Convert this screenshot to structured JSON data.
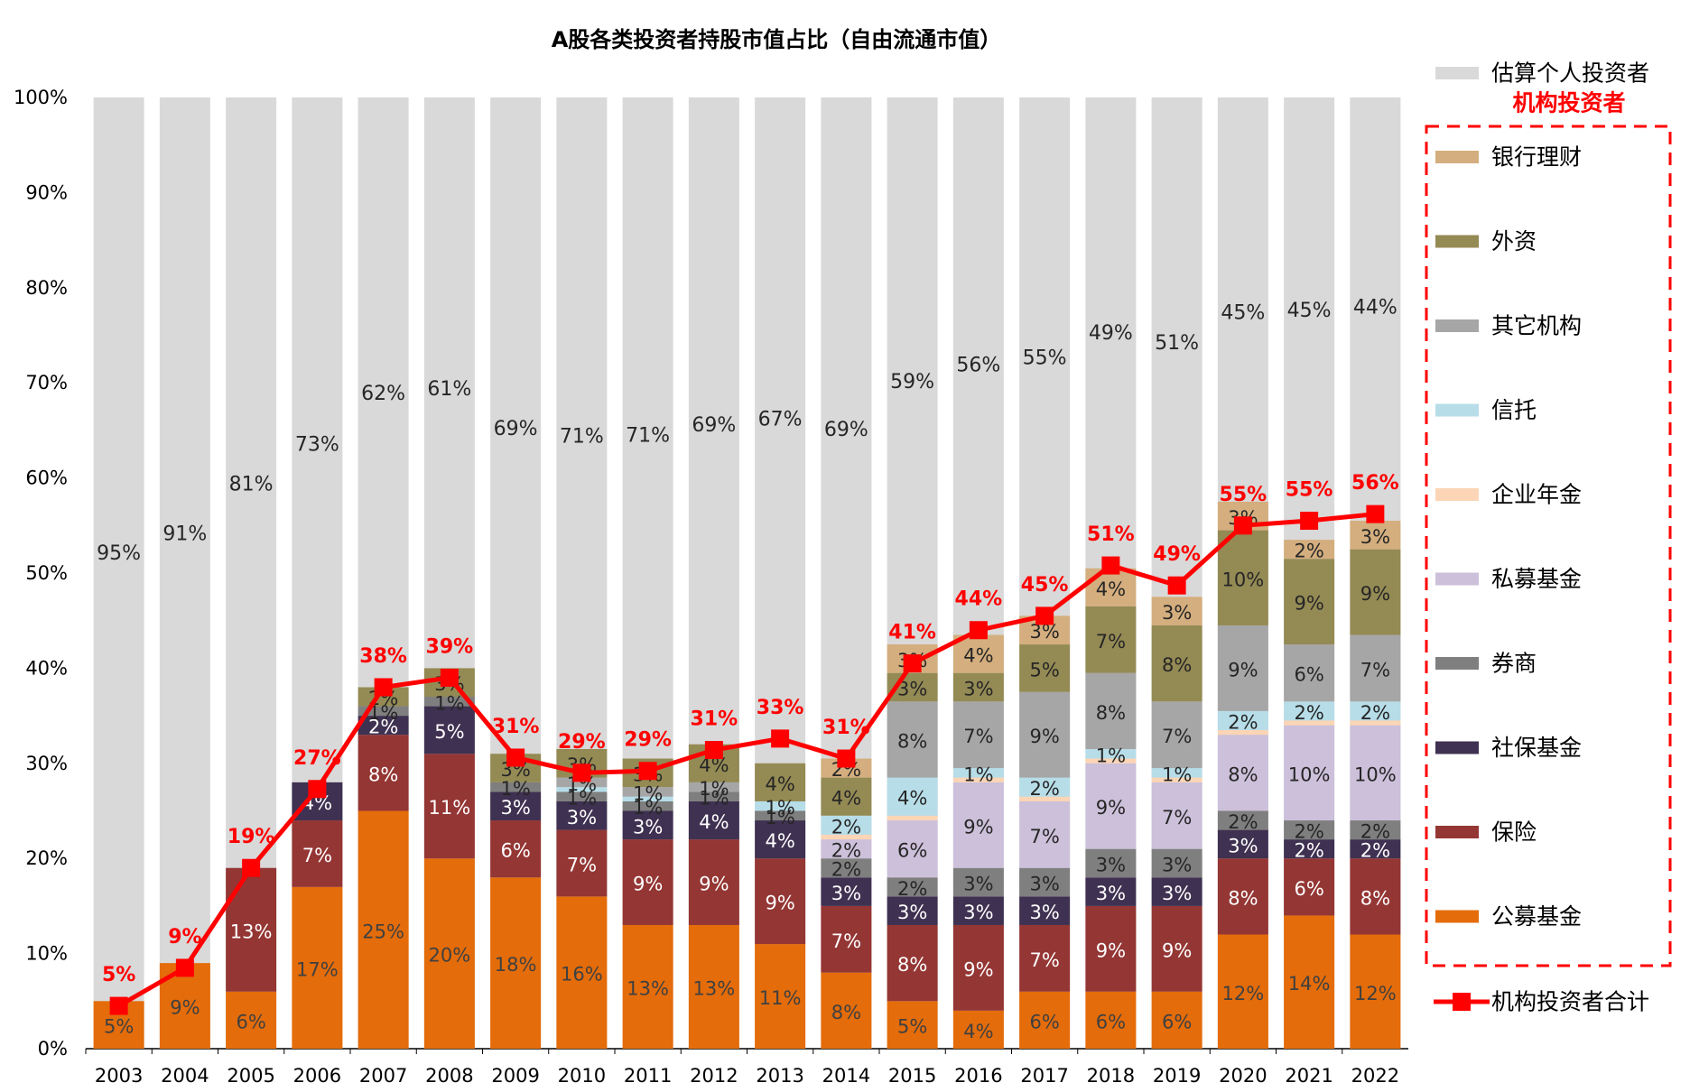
{
  "chart_data": {
    "type": "bar",
    "stacked": true,
    "title": "A股各类投资者持股市值占比（自由流通市值）",
    "ylim": [
      0,
      100
    ],
    "y_ticks": [
      "0%",
      "10%",
      "20%",
      "30%",
      "40%",
      "50%",
      "60%",
      "70%",
      "80%",
      "90%",
      "100%"
    ],
    "categories": [
      "2003",
      "2004",
      "2005",
      "2006",
      "2007",
      "2008",
      "2009",
      "2010",
      "2011",
      "2012",
      "2013",
      "2014",
      "2015",
      "2016",
      "2017",
      "2018",
      "2019",
      "2020",
      "2021",
      "2022"
    ],
    "series": [
      {
        "name": "公募基金",
        "color": "#E46C0A",
        "text_color": "#404040",
        "values": [
          5,
          9,
          6,
          17,
          25,
          20,
          18,
          16,
          13,
          13,
          11,
          8,
          5,
          4,
          6,
          6,
          6,
          12,
          14,
          12
        ],
        "labels": [
          "5%",
          "9%",
          "6%",
          "17%",
          "25%",
          "20%",
          "18%",
          "16%",
          "13%",
          "13%",
          "11%",
          "8%",
          "5%",
          "4%",
          "6%",
          "6%",
          "6%",
          "12%",
          "14%",
          "12%"
        ]
      },
      {
        "name": "保险",
        "color": "#943634",
        "text_color": "#FFFFFF",
        "values": [
          0,
          0,
          13,
          7,
          8,
          11,
          6,
          7,
          9,
          9,
          9,
          7,
          8,
          9,
          7,
          9,
          9,
          8,
          6,
          8
        ],
        "labels": [
          "",
          "",
          "13%",
          "7%",
          "8%",
          "11%",
          "6%",
          "7%",
          "9%",
          "9%",
          "9%",
          "7%",
          "8%",
          "9%",
          "7%",
          "9%",
          "9%",
          "8%",
          "6%",
          "8%"
        ]
      },
      {
        "name": "社保基金",
        "color": "#3F3151",
        "text_color": "#FFFFFF",
        "values": [
          0,
          0,
          0,
          4,
          2,
          5,
          3,
          3,
          3,
          4,
          4,
          3,
          3,
          3,
          3,
          3,
          3,
          3,
          2,
          2
        ],
        "labels": [
          "",
          "",
          "",
          "4%",
          "2%",
          "5%",
          "3%",
          "3%",
          "3%",
          "4%",
          "4%",
          "3%",
          "3%",
          "3%",
          "3%",
          "3%",
          "3%",
          "3%",
          "2%",
          "2%"
        ]
      },
      {
        "name": "券商",
        "color": "#7F7F7F",
        "text_color": "#262626",
        "values": [
          0,
          0,
          0,
          0,
          1,
          1,
          1,
          1,
          1,
          1,
          1,
          2,
          2,
          3,
          3,
          3,
          3,
          2,
          2,
          2
        ],
        "labels": [
          "",
          "",
          "",
          "",
          "1%",
          "1%",
          "1%",
          "1%",
          "1%",
          "1%",
          "1%",
          "2%",
          "2%",
          "3%",
          "3%",
          "3%",
          "3%",
          "2%",
          "2%",
          "2%"
        ]
      },
      {
        "name": "私募基金",
        "color": "#CCC0DA",
        "text_color": "#262626",
        "values": [
          0,
          0,
          0,
          0,
          0,
          0,
          0,
          0,
          0,
          0,
          0,
          2,
          6,
          9,
          7,
          9,
          7,
          8,
          10,
          10
        ],
        "labels": [
          "",
          "",
          "",
          "",
          "",
          "",
          "",
          "",
          "",
          "",
          "",
          "2%",
          "6%",
          "9%",
          "7%",
          "9%",
          "7%",
          "8%",
          "10%",
          "10%"
        ]
      },
      {
        "name": "企业年金",
        "color": "#FBD5B5",
        "text_color": "#262626",
        "values": [
          0,
          0,
          0,
          0,
          0,
          0,
          0,
          0,
          0,
          0,
          0,
          0.5,
          0.5,
          0.5,
          0.5,
          0.5,
          0.5,
          0.5,
          0.5,
          0.5
        ],
        "labels": [
          "",
          "",
          "",
          "",
          "",
          "",
          "",
          "",
          "",
          "",
          "",
          "",
          "",
          "",
          "",
          "",
          "",
          "",
          "",
          ""
        ]
      },
      {
        "name": "信托",
        "color": "#B7DDE8",
        "text_color": "#262626",
        "values": [
          0,
          0,
          0,
          0,
          0,
          0,
          0,
          0.5,
          0.5,
          0,
          1,
          2,
          4,
          1,
          2,
          1,
          1,
          2,
          2,
          2
        ],
        "labels": [
          "",
          "",
          "",
          "",
          "",
          "",
          "",
          "",
          "",
          "",
          "1%",
          "2%",
          "4%",
          "1%",
          "2%",
          "1%",
          "1%",
          "2%",
          "2%",
          "2%"
        ]
      },
      {
        "name": "其它机构",
        "color": "#A6A6A6",
        "text_color": "#262626",
        "values": [
          0,
          0,
          0,
          0,
          0,
          0,
          0,
          1,
          1,
          1,
          0,
          0,
          8,
          7,
          9,
          8,
          7,
          9,
          6,
          7
        ],
        "labels": [
          "",
          "",
          "",
          "",
          "",
          "",
          "",
          "1%",
          "1%",
          "1%",
          "",
          "",
          "8%",
          "7%",
          "9%",
          "8%",
          "7%",
          "9%",
          "6%",
          "7%"
        ]
      },
      {
        "name": "外资",
        "color": "#948A54",
        "text_color": "#262626",
        "values": [
          0,
          0,
          0,
          0,
          2,
          3,
          3,
          3,
          3,
          4,
          4,
          4,
          3,
          3,
          5,
          7,
          8,
          10,
          9,
          9
        ],
        "labels": [
          "",
          "",
          "",
          "",
          "2%",
          "3%",
          "3%",
          "3%",
          "3%",
          "4%",
          "4%",
          "4%",
          "3%",
          "3%",
          "5%",
          "7%",
          "8%",
          "10%",
          "9%",
          "9%"
        ]
      },
      {
        "name": "银行理财",
        "color": "#D4AE7E",
        "text_color": "#262626",
        "values": [
          0,
          0,
          0,
          0,
          0,
          0,
          0,
          0,
          0,
          0,
          0,
          2,
          3,
          4,
          3,
          4,
          3,
          3,
          2,
          3
        ],
        "labels": [
          "",
          "",
          "",
          "",
          "",
          "",
          "",
          "",
          "",
          "",
          "",
          "2%",
          "3%",
          "4%",
          "3%",
          "4%",
          "3%",
          "3%",
          "2%",
          "3%"
        ]
      }
    ],
    "individual": {
      "name": "估算个人投资者",
      "color": "#D9D9D9",
      "labels": [
        "95%",
        "91%",
        "81%",
        "73%",
        "62%",
        "61%",
        "69%",
        "71%",
        "71%",
        "69%",
        "67%",
        "69%",
        "59%",
        "56%",
        "55%",
        "49%",
        "51%",
        "45%",
        "45%",
        "44%"
      ]
    },
    "total_line": {
      "name": "机构投资者合计",
      "color": "#FF0000",
      "values": [
        4.5,
        8.5,
        19,
        27.3,
        38,
        39,
        30.6,
        29,
        29.2,
        31.4,
        32.6,
        30.5,
        40.5,
        44,
        45.5,
        50.8,
        48.7,
        55,
        55.5,
        56.2
      ],
      "labels": [
        "5%",
        "9%",
        "19%",
        "27%",
        "38%",
        "39%",
        "31%",
        "29%",
        "29%",
        "31%",
        "33%",
        "31%",
        "41%",
        "44%",
        "45%",
        "51%",
        "49%",
        "55%",
        "55%",
        "56%"
      ]
    },
    "legend": {
      "individual_label": "估算个人投资者",
      "group_title": "机构投资者",
      "group_items": [
        "银行理财",
        "外资",
        "其它机构",
        "信托",
        "企业年金",
        "私募基金",
        "券商",
        "社保基金",
        "保险",
        "公募基金"
      ],
      "line_label": "机构投资者合计",
      "placement": "right"
    },
    "grid": false
  }
}
